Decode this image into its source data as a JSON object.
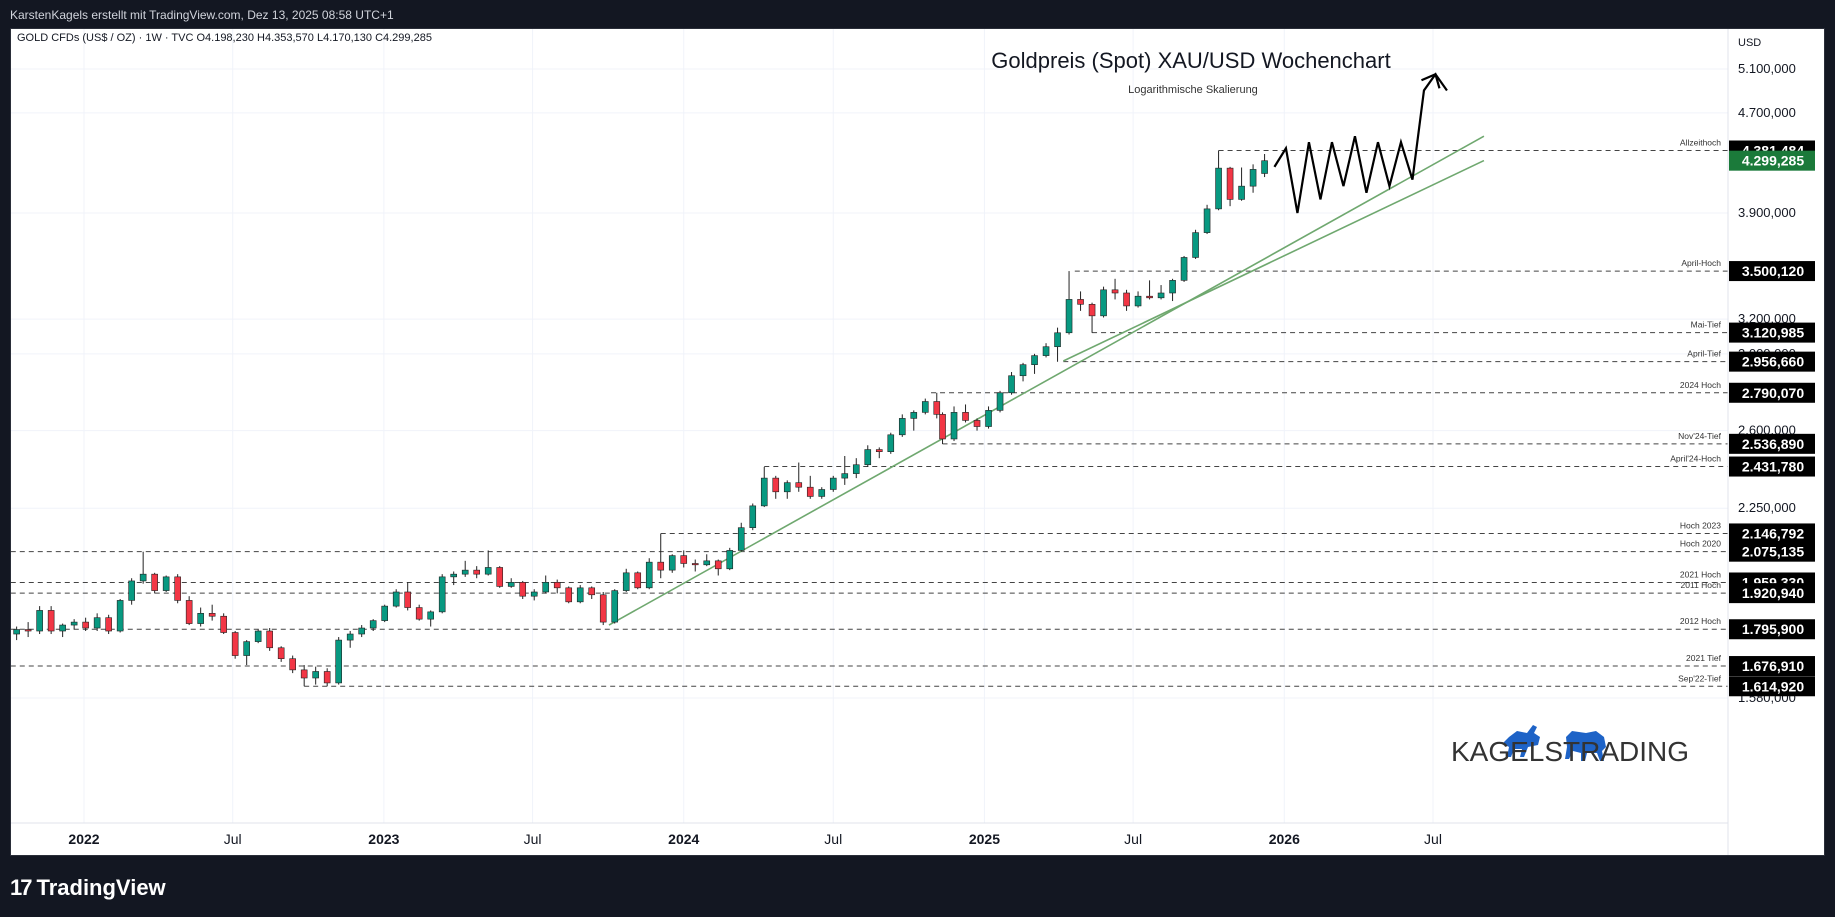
{
  "watermark_top": "KarstenKagels erstellt mit TradingView.com, Dez 13, 2025 08:58 UTC+1",
  "symbol_line": "GOLD CFDs (US$ / OZ) · 1W · TVC  O4.198,230  H4.353,570  L4.170,130  C4.299,285",
  "currency": "USD",
  "brand": "TradingView",
  "kagels_logo": "KAGELSTRADING",
  "colors": {
    "up": "#089981",
    "down": "#f23645",
    "line": "#6fa86f",
    "projection": "#000000",
    "label_bg": "#000000",
    "current_bg": "#1b7a3a"
  },
  "chart_data": {
    "type": "candlestick",
    "title": "Goldpreis (Spot) XAU/USD Wochenchart",
    "subtitle": "Logarithmische Skalierung",
    "scale": "log",
    "y_ticks": [
      "5.100,000",
      "4.700,000",
      "3.900,000",
      "3.200,000",
      "3.000,000",
      "2.600,000",
      "2.250,000",
      "1.580,000"
    ],
    "y_tick_values": [
      5100,
      4700,
      3900,
      3200,
      3000,
      2600,
      2250,
      1580
    ],
    "x_ticks": [
      "2022",
      "Jul",
      "2023",
      "Jul",
      "2024",
      "Jul",
      "2025",
      "Jul",
      "2026",
      "Jul"
    ],
    "x_tick_dates": [
      "2022-01-01",
      "2022-07-01",
      "2023-01-01",
      "2023-07-01",
      "2024-01-01",
      "2024-07-01",
      "2025-01-01",
      "2025-07-01",
      "2026-01-01",
      "2026-07-01"
    ],
    "levels": [
      {
        "label": "Allzeithoch",
        "value": 4381.484,
        "text": "4.381,484",
        "start": "2025-10-13",
        "dashed": true
      },
      {
        "label": "",
        "value": 4299.285,
        "text": "4.299,285",
        "current": true
      },
      {
        "label": "April-Hoch",
        "value": 3500.12,
        "text": "3.500,120",
        "start": "2025-04-21",
        "dashed": true
      },
      {
        "label": "Mai-Tief",
        "value": 3120.985,
        "text": "3.120,985",
        "start": "2025-05-12",
        "dashed": true
      },
      {
        "label": "April-Tief",
        "value": 2956.66,
        "text": "2.956,660",
        "start": "2025-04-07",
        "dashed": true
      },
      {
        "label": "2024 Hoch",
        "value": 2790.07,
        "text": "2.790,070",
        "start": "2024-10-28",
        "dashed": true
      },
      {
        "label": "Nov'24-Tief",
        "value": 2536.89,
        "text": "2.536,890",
        "start": "2024-11-11",
        "dashed": true
      },
      {
        "label": "April'24-Hoch",
        "value": 2431.78,
        "text": "2.431,780",
        "start": "2024-04-08",
        "dashed": true
      },
      {
        "label": "Hoch 2023",
        "value": 2146.792,
        "text": "2.146,792",
        "start": "2023-12-04",
        "dashed": true
      },
      {
        "label": "Hoch 2020",
        "value": 2075.135,
        "text": "2.075,135",
        "start": "2021-09-01",
        "dashed": true
      },
      {
        "label": "2021 Hoch",
        "value": 1959.33,
        "text": "1.959,330",
        "start": "2021-09-01",
        "dashed": true
      },
      {
        "label": "2011 Hoch",
        "value": 1920.94,
        "text": "1.920,940",
        "start": "2021-09-01",
        "dashed": true
      },
      {
        "label": "2012 Hoch",
        "value": 1795.9,
        "text": "1.795,900",
        "start": "2021-09-01",
        "dashed": true
      },
      {
        "label": "2021 Tief",
        "value": 1676.91,
        "text": "1.676,910",
        "start": "2021-09-01",
        "dashed": true
      },
      {
        "label": "Sep'22-Tief",
        "value": 1614.92,
        "text": "1.614,920",
        "start": "2022-09-26",
        "dashed": true
      }
    ],
    "trendlines": [
      {
        "x": [
          "2023-10-02",
          "2026-09-01"
        ],
        "y": [
          1810,
          4500
        ]
      },
      {
        "x": [
          "2025-04-07",
          "2026-09-01"
        ],
        "y": [
          2960,
          4300
        ]
      }
    ],
    "projection": {
      "x": [
        "2025-12-20",
        "2026-01-03",
        "2026-01-17",
        "2026-01-31",
        "2026-02-14",
        "2026-02-28",
        "2026-03-14",
        "2026-03-28",
        "2026-04-11",
        "2026-04-25",
        "2026-05-09",
        "2026-05-23",
        "2026-06-06",
        "2026-06-20",
        "2026-07-04",
        "2026-07-18"
      ],
      "y": [
        4250,
        4400,
        3900,
        4450,
        4000,
        4450,
        4100,
        4500,
        4050,
        4450,
        4100,
        4450,
        4150,
        4900,
        5050,
        4900
      ]
    },
    "candles": [
      [
        "2021-09-01",
        1780,
        1820,
        1755,
        1810
      ],
      [
        "2021-09-13",
        1810,
        1825,
        1745,
        1755
      ],
      [
        "2021-09-27",
        1755,
        1785,
        1725,
        1780
      ],
      [
        "2021-10-11",
        1780,
        1805,
        1760,
        1795
      ],
      [
        "2021-10-25",
        1795,
        1820,
        1770,
        1790
      ],
      [
        "2021-11-08",
        1790,
        1875,
        1780,
        1860
      ],
      [
        "2021-11-22",
        1860,
        1875,
        1780,
        1790
      ],
      [
        "2021-12-06",
        1790,
        1815,
        1770,
        1810
      ],
      [
        "2021-12-20",
        1810,
        1830,
        1795,
        1820
      ],
      [
        "2022-01-03",
        1820,
        1835,
        1790,
        1800
      ],
      [
        "2022-01-17",
        1800,
        1850,
        1790,
        1835
      ],
      [
        "2022-01-31",
        1835,
        1845,
        1780,
        1790
      ],
      [
        "2022-02-14",
        1790,
        1900,
        1785,
        1895
      ],
      [
        "2022-02-28",
        1895,
        1975,
        1880,
        1965
      ],
      [
        "2022-03-14",
        1965,
        2075,
        1955,
        1990
      ],
      [
        "2022-03-28",
        1990,
        1995,
        1920,
        1930
      ],
      [
        "2022-04-11",
        1930,
        1985,
        1925,
        1980
      ],
      [
        "2022-04-25",
        1980,
        1990,
        1885,
        1895
      ],
      [
        "2022-05-09",
        1895,
        1910,
        1810,
        1815
      ],
      [
        "2022-05-23",
        1815,
        1870,
        1805,
        1850
      ],
      [
        "2022-06-06",
        1850,
        1880,
        1825,
        1840
      ],
      [
        "2022-06-20",
        1840,
        1850,
        1780,
        1785
      ],
      [
        "2022-07-04",
        1785,
        1790,
        1700,
        1710
      ],
      [
        "2022-07-18",
        1710,
        1760,
        1680,
        1755
      ],
      [
        "2022-08-01",
        1755,
        1795,
        1750,
        1790
      ],
      [
        "2022-08-15",
        1790,
        1800,
        1725,
        1735
      ],
      [
        "2022-08-29",
        1735,
        1740,
        1690,
        1700
      ],
      [
        "2022-09-12",
        1700,
        1710,
        1655,
        1665
      ],
      [
        "2022-09-26",
        1665,
        1680,
        1615,
        1640
      ],
      [
        "2022-10-10",
        1640,
        1675,
        1620,
        1660
      ],
      [
        "2022-10-24",
        1660,
        1670,
        1615,
        1625
      ],
      [
        "2022-11-07",
        1625,
        1770,
        1620,
        1760
      ],
      [
        "2022-11-21",
        1760,
        1790,
        1735,
        1780
      ],
      [
        "2022-12-05",
        1780,
        1810,
        1770,
        1800
      ],
      [
        "2022-12-19",
        1800,
        1830,
        1790,
        1825
      ],
      [
        "2023-01-02",
        1825,
        1880,
        1820,
        1875
      ],
      [
        "2023-01-16",
        1875,
        1935,
        1870,
        1925
      ],
      [
        "2023-01-30",
        1925,
        1960,
        1860,
        1870
      ],
      [
        "2023-02-13",
        1870,
        1880,
        1825,
        1830
      ],
      [
        "2023-02-27",
        1830,
        1860,
        1805,
        1855
      ],
      [
        "2023-03-13",
        1855,
        1990,
        1850,
        1980
      ],
      [
        "2023-03-27",
        1980,
        2000,
        1950,
        1990
      ],
      [
        "2023-04-10",
        1990,
        2040,
        1980,
        2005
      ],
      [
        "2023-04-24",
        2005,
        2020,
        1975,
        1990
      ],
      [
        "2023-05-08",
        1990,
        2080,
        1985,
        2015
      ],
      [
        "2023-05-22",
        2015,
        2020,
        1940,
        1945
      ],
      [
        "2023-06-05",
        1945,
        1975,
        1940,
        1960
      ],
      [
        "2023-06-19",
        1960,
        1965,
        1900,
        1910
      ],
      [
        "2023-07-03",
        1910,
        1935,
        1895,
        1925
      ],
      [
        "2023-07-17",
        1925,
        1985,
        1920,
        1960
      ],
      [
        "2023-07-31",
        1960,
        1970,
        1920,
        1940
      ],
      [
        "2023-08-14",
        1940,
        1945,
        1885,
        1890
      ],
      [
        "2023-08-28",
        1890,
        1950,
        1885,
        1940
      ],
      [
        "2023-09-11",
        1940,
        1945,
        1900,
        1915
      ],
      [
        "2023-09-25",
        1915,
        1925,
        1810,
        1820
      ],
      [
        "2023-10-09",
        1820,
        1935,
        1815,
        1930
      ],
      [
        "2023-10-23",
        1930,
        2010,
        1925,
        1995
      ],
      [
        "2023-11-06",
        1995,
        2000,
        1935,
        1940
      ],
      [
        "2023-11-20",
        1940,
        2050,
        1935,
        2035
      ],
      [
        "2023-12-04",
        2035,
        2146,
        1975,
        2005
      ],
      [
        "2023-12-18",
        2005,
        2065,
        1995,
        2060
      ],
      [
        "2024-01-01",
        2060,
        2080,
        2015,
        2030
      ],
      [
        "2024-01-15",
        2030,
        2045,
        2000,
        2025
      ],
      [
        "2024-01-29",
        2025,
        2065,
        2020,
        2040
      ],
      [
        "2024-02-12",
        2040,
        2045,
        1985,
        2010
      ],
      [
        "2024-02-26",
        2010,
        2090,
        2005,
        2080
      ],
      [
        "2024-03-11",
        2080,
        2190,
        2075,
        2170
      ],
      [
        "2024-03-25",
        2170,
        2270,
        2160,
        2260
      ],
      [
        "2024-04-08",
        2260,
        2430,
        2255,
        2380
      ],
      [
        "2024-04-22",
        2380,
        2390,
        2290,
        2320
      ],
      [
        "2024-05-06",
        2320,
        2370,
        2290,
        2360
      ],
      [
        "2024-05-20",
        2360,
        2450,
        2320,
        2340
      ],
      [
        "2024-06-03",
        2340,
        2390,
        2290,
        2300
      ],
      [
        "2024-06-17",
        2300,
        2340,
        2290,
        2330
      ],
      [
        "2024-07-01",
        2330,
        2390,
        2320,
        2380
      ],
      [
        "2024-07-15",
        2380,
        2480,
        2350,
        2400
      ],
      [
        "2024-07-29",
        2400,
        2470,
        2380,
        2440
      ],
      [
        "2024-08-12",
        2440,
        2530,
        2430,
        2510
      ],
      [
        "2024-08-26",
        2510,
        2520,
        2470,
        2500
      ],
      [
        "2024-09-09",
        2500,
        2590,
        2490,
        2580
      ],
      [
        "2024-09-23",
        2580,
        2680,
        2570,
        2660
      ],
      [
        "2024-10-07",
        2660,
        2700,
        2600,
        2690
      ],
      [
        "2024-10-21",
        2690,
        2760,
        2680,
        2745
      ],
      [
        "2024-11-04",
        2745,
        2790,
        2660,
        2680
      ],
      [
        "2024-11-11",
        2680,
        2690,
        2536,
        2560
      ],
      [
        "2024-11-25",
        2560,
        2720,
        2550,
        2690
      ],
      [
        "2024-12-09",
        2690,
        2730,
        2640,
        2650
      ],
      [
        "2024-12-23",
        2650,
        2660,
        2600,
        2620
      ],
      [
        "2025-01-06",
        2620,
        2720,
        2610,
        2700
      ],
      [
        "2025-01-20",
        2700,
        2800,
        2690,
        2790
      ],
      [
        "2025-02-03",
        2790,
        2900,
        2780,
        2880
      ],
      [
        "2025-02-17",
        2880,
        2950,
        2850,
        2940
      ],
      [
        "2025-03-03",
        2940,
        3000,
        2890,
        2990
      ],
      [
        "2025-03-17",
        2990,
        3060,
        2980,
        3040
      ],
      [
        "2025-03-31",
        3040,
        3150,
        2956,
        3120
      ],
      [
        "2025-04-14",
        3120,
        3500,
        3110,
        3320
      ],
      [
        "2025-04-28",
        3320,
        3370,
        3250,
        3290
      ],
      [
        "2025-05-12",
        3290,
        3300,
        3120,
        3220
      ],
      [
        "2025-05-26",
        3220,
        3400,
        3210,
        3380
      ],
      [
        "2025-06-09",
        3380,
        3450,
        3320,
        3360
      ],
      [
        "2025-06-23",
        3360,
        3380,
        3250,
        3280
      ],
      [
        "2025-07-07",
        3280,
        3370,
        3270,
        3340
      ],
      [
        "2025-07-21",
        3340,
        3440,
        3320,
        3330
      ],
      [
        "2025-08-04",
        3330,
        3410,
        3320,
        3360
      ],
      [
        "2025-08-18",
        3360,
        3450,
        3310,
        3440
      ],
      [
        "2025-09-01",
        3440,
        3600,
        3430,
        3590
      ],
      [
        "2025-09-15",
        3590,
        3780,
        3580,
        3760
      ],
      [
        "2025-09-29",
        3760,
        3960,
        3750,
        3930
      ],
      [
        "2025-10-13",
        3930,
        4381,
        3920,
        4240
      ],
      [
        "2025-10-27",
        4240,
        4250,
        3950,
        4000
      ],
      [
        "2025-11-10",
        4000,
        4245,
        3990,
        4100
      ],
      [
        "2025-11-24",
        4100,
        4270,
        4050,
        4230
      ],
      [
        "2025-12-08",
        4198,
        4353,
        4170,
        4299
      ]
    ]
  }
}
